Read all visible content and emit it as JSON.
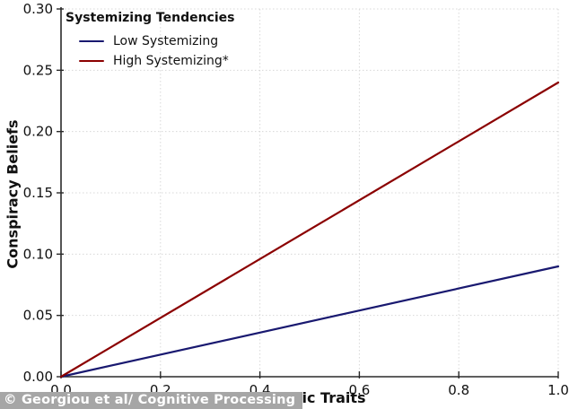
{
  "watermark": {
    "text": "© Georgiou et al/ Cognitive Processing",
    "bg": "#a6a6a6",
    "fg": "#ffffff"
  },
  "colors": {
    "axis": "#2a2a2a",
    "grid": "#d8d8d8",
    "tick_label": "#111111",
    "background": "#ffffff"
  },
  "chart_data": {
    "type": "line",
    "title": "",
    "xlabel": "Autistic Traits",
    "ylabel": "Conspiracy Beliefs",
    "xlim": [
      0.0,
      1.0
    ],
    "ylim": [
      0.0,
      0.3
    ],
    "grid": "dotted",
    "xticks": {
      "values": [
        0.0,
        0.2,
        0.4,
        0.6,
        0.8,
        1.0
      ],
      "labels": [
        "0.0",
        "0.2",
        "0.4",
        "0.6",
        "0.8",
        "1.0"
      ]
    },
    "yticks": {
      "values": [
        0.0,
        0.05,
        0.1,
        0.15,
        0.2,
        0.25,
        0.3
      ],
      "labels": [
        "0.00",
        "0.05",
        "0.10",
        "0.15",
        "0.20",
        "0.25",
        "0.30"
      ]
    },
    "legend": {
      "title": "Systemizing Tendencies",
      "position": "top-left"
    },
    "series": [
      {
        "name": "Low Systemizing",
        "color": "#191970",
        "x": [
          0.0,
          1.0
        ],
        "y": [
          0.0,
          0.09
        ]
      },
      {
        "name": "High Systemizing*",
        "color": "#8b0000",
        "x": [
          0.0,
          1.0
        ],
        "y": [
          0.0,
          0.24
        ]
      }
    ]
  }
}
